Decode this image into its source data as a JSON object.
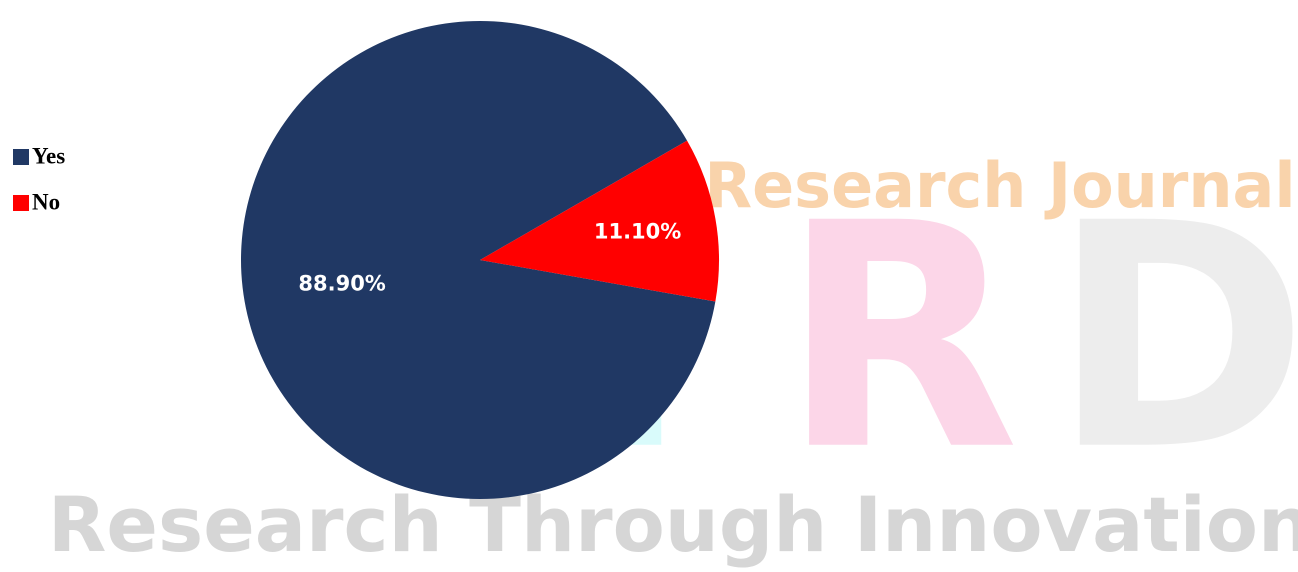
{
  "chart_data": {
    "type": "pie",
    "categories": [
      "Yes",
      "No"
    ],
    "values": [
      88.9,
      11.1
    ],
    "value_labels": [
      "88.90%",
      "11.10%"
    ],
    "colors": [
      "#203864",
      "#ff0000"
    ],
    "legend": "left"
  },
  "watermark": {
    "top": "Research Journal",
    "letters": [
      "N",
      "R",
      "D"
    ],
    "letter_colors": [
      "#d9fbfb",
      "#fcd6e8",
      "#ededed"
    ],
    "bottom": "Research Through Innovation"
  }
}
